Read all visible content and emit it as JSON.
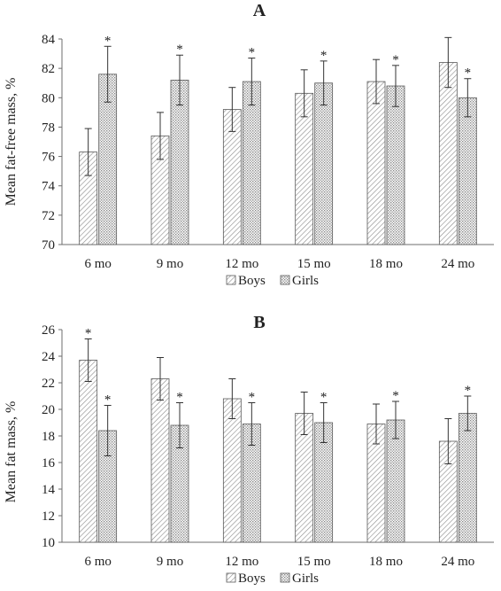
{
  "chart_data": [
    {
      "type": "bar",
      "title": "A",
      "ylabel": "Mean fat-free mass, %",
      "xlabel": "",
      "ylim": [
        70,
        84
      ],
      "yticks": [
        70,
        72,
        74,
        76,
        78,
        80,
        82,
        84
      ],
      "categories": [
        "6 mo",
        "9 mo",
        "12 mo",
        "15 mo",
        "18 mo",
        "24 mo"
      ],
      "series": [
        {
          "name": "Boys",
          "pattern": "diagonal-hatch",
          "values": [
            76.3,
            77.4,
            79.2,
            80.3,
            81.1,
            82.4
          ],
          "errors": [
            1.6,
            1.6,
            1.5,
            1.6,
            1.5,
            1.7
          ]
        },
        {
          "name": "Girls",
          "pattern": "crosshatch",
          "values": [
            81.6,
            81.2,
            81.1,
            81.0,
            80.8,
            80.0
          ],
          "errors": [
            1.9,
            1.7,
            1.6,
            1.5,
            1.4,
            1.3
          ]
        }
      ],
      "significance_marker": "*",
      "significance_on_series": "Girls",
      "grid": false,
      "legend_position": "bottom"
    },
    {
      "type": "bar",
      "title": "B",
      "ylabel": "Mean fat mass, %",
      "xlabel": "",
      "ylim": [
        10,
        26
      ],
      "yticks": [
        10,
        12,
        14,
        16,
        18,
        20,
        22,
        24,
        26
      ],
      "categories": [
        "6 mo",
        "9 mo",
        "12 mo",
        "15 mo",
        "18 mo",
        "24 mo"
      ],
      "series": [
        {
          "name": "Boys",
          "pattern": "diagonal-hatch",
          "values": [
            23.7,
            22.3,
            20.8,
            19.7,
            18.9,
            17.6
          ],
          "errors": [
            1.6,
            1.6,
            1.5,
            1.6,
            1.5,
            1.7
          ]
        },
        {
          "name": "Girls",
          "pattern": "crosshatch",
          "values": [
            18.4,
            18.8,
            18.9,
            19.0,
            19.2,
            19.7
          ],
          "errors": [
            1.9,
            1.7,
            1.6,
            1.5,
            1.4,
            1.3
          ]
        }
      ],
      "significance_marker": "*",
      "significance_on_series": "Girls",
      "significance_extra": [
        {
          "category": "6 mo",
          "series": "Boys"
        }
      ],
      "grid": false,
      "legend_position": "bottom"
    }
  ],
  "colors": {
    "axis": "#6e6e6e",
    "bar_stroke": "#5a5a5a",
    "hatch": "#8a8a8a",
    "text": "#222222"
  }
}
